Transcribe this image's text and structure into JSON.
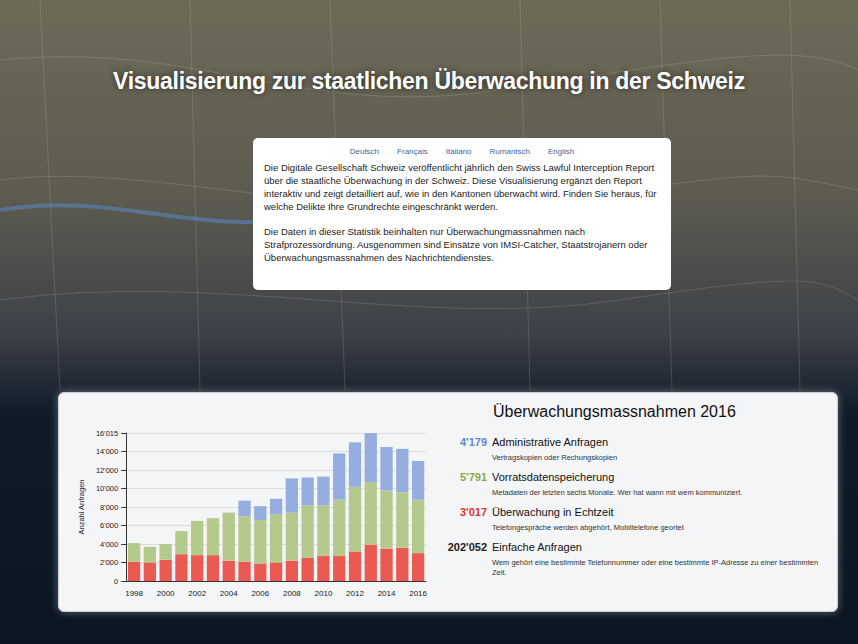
{
  "page": {
    "title": "Visualisierung zur staatlichen Überwachung in der Schweiz",
    "languages": [
      "Deutsch",
      "Français",
      "Italiano",
      "Rumantsch",
      "English"
    ],
    "paragraphs": [
      "Die Digitale Gesellschaft Schweiz veröffentlicht jährlich den Swiss Lawful Interception Report über die staatliche Überwachung in der Schweiz. Diese Visualisierung ergänzt den Report interaktiv und zeigt detailliert auf, wie in den Kantonen überwacht wird. Finden Sie heraus, für welche Delikte Ihre Grundrechte eingeschränkt werden.",
      "Die Daten in dieser Statistik beinhalten nur Überwachungmassnahmen nach Strafprozessordnung. Ausgenommen sind Einsätze von IMSI-Catcher, Staatstrojanern oder Überwachungsmassnahmen des Nachrichtendienstes."
    ],
    "summary": {
      "title": "Überwachungsmassnahmen 2016",
      "items": [
        {
          "label": "4'179",
          "name": "Administrative Anfragen",
          "description": "Vertragskopien oder Rechungskopien",
          "color": "#5b88c9"
        },
        {
          "label": "5'791",
          "name": "Vorratsdatenspeicherung",
          "description": "Metadaten der letzten sechs Monate. Wer hat wann mit wem kommuniziert.",
          "color": "#8aa94a"
        },
        {
          "label": "3'017",
          "name": "Überwachung in Echtzeit",
          "description": "Telefongespräche werden abgehört, Mobiltelefone geortet",
          "color": "#d9362b"
        },
        {
          "label": "202'052",
          "name": "Einfache Anfragen",
          "description": "Wem gehört eine bestimmte Telefonnummer oder eine bestimmte IP-Adresse zu einer bestimmten Zeit.",
          "color": "#222222"
        }
      ]
    }
  },
  "chart_data": {
    "type": "bar",
    "stacked": true,
    "grid": true,
    "y_label": "Anzahl Anfragen",
    "categories": [
      "1998",
      null,
      "2000",
      null,
      "2002",
      null,
      "2004",
      null,
      "2006",
      null,
      "2008",
      null,
      "2010",
      null,
      "2012",
      null,
      "2014",
      null,
      "2016"
    ],
    "series": [
      {
        "name": "Überwachung in Echtzeit",
        "color": "#ea5a52",
        "values": [
          2100,
          2000,
          2300,
          2900,
          2800,
          2800,
          2200,
          2100,
          1900,
          2000,
          2200,
          2500,
          2700,
          2700,
          3200,
          3900,
          3500,
          3600,
          3017
        ]
      },
      {
        "name": "Vorratsdatenspeicherung",
        "color": "#b4c98c",
        "values": [
          2000,
          1700,
          1700,
          2500,
          3700,
          4000,
          5200,
          4900,
          4700,
          5200,
          5200,
          5700,
          5500,
          6100,
          7000,
          6800,
          6300,
          6000,
          5791
        ]
      },
      {
        "name": "Administrative Anfragen",
        "color": "#95aedf",
        "values": [
          0,
          0,
          0,
          0,
          0,
          0,
          0,
          1700,
          1500,
          1700,
          3700,
          3000,
          3100,
          5000,
          4800,
          5300,
          4700,
          4700,
          4179
        ]
      }
    ],
    "ylim": [
      0,
      16015
    ],
    "yticks": [
      0,
      {
        "value": 2000,
        "label": "2'000"
      },
      {
        "value": 4000,
        "label": "4'000"
      },
      {
        "value": 6000,
        "label": "6'000"
      },
      {
        "value": 8000,
        "label": "8'000"
      },
      {
        "value": 10000,
        "label": "10'000"
      },
      {
        "value": 12000,
        "label": "12'000"
      },
      {
        "value": 14000,
        "label": "14'000"
      },
      {
        "value": 16015,
        "label": "16'015"
      }
    ]
  }
}
